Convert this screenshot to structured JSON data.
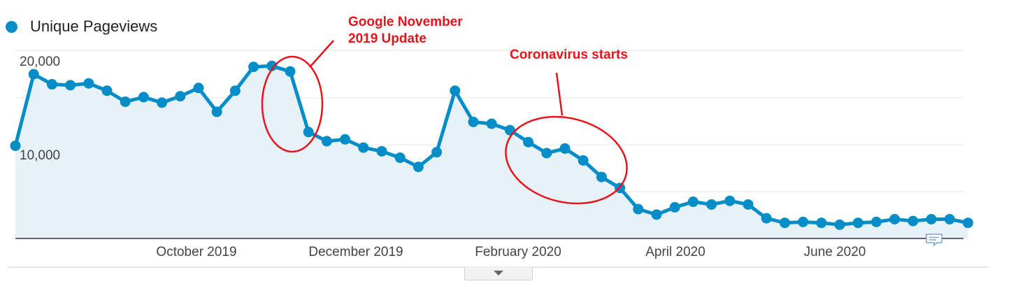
{
  "legend": {
    "label": "Unique Pageviews",
    "color": "#058dc7"
  },
  "annotations": {
    "update_line1": "Google November",
    "update_line2": "2019 Update",
    "corona": "Coronavirus starts",
    "color": "#e8131b"
  },
  "icons": {
    "comment": "comment-icon",
    "expand": "chevron-down-icon"
  },
  "chart_data": {
    "type": "area",
    "series": [
      {
        "name": "Unique Pageviews",
        "color": "#058dc7",
        "values": [
          10100,
          17900,
          16800,
          16700,
          16900,
          16100,
          14900,
          15400,
          14800,
          15500,
          16400,
          13800,
          16100,
          18700,
          18800,
          18200,
          11600,
          10600,
          10800,
          9900,
          9500,
          8800,
          7800,
          9400,
          16100,
          12700,
          12500,
          11800,
          10500,
          9300,
          9800,
          8500,
          6700,
          5500,
          3200,
          2600,
          3400,
          4000,
          3700,
          4100,
          3700,
          2200,
          1700,
          1800,
          1700,
          1500,
          1700,
          1800,
          2100,
          1900,
          2100,
          2100,
          1700
        ]
      }
    ],
    "x_ticks": [
      "October 2019",
      "December 2019",
      "February 2020",
      "April 2020",
      "June 2020"
    ],
    "x_tick_positions": [
      11,
      19.8,
      28.6,
      37.3,
      46.1
    ],
    "y_ticks": [
      "20,000",
      "10,000"
    ],
    "y_tick_values": [
      20000,
      10000
    ],
    "ylim": [
      0,
      20000
    ],
    "grid": true
  }
}
